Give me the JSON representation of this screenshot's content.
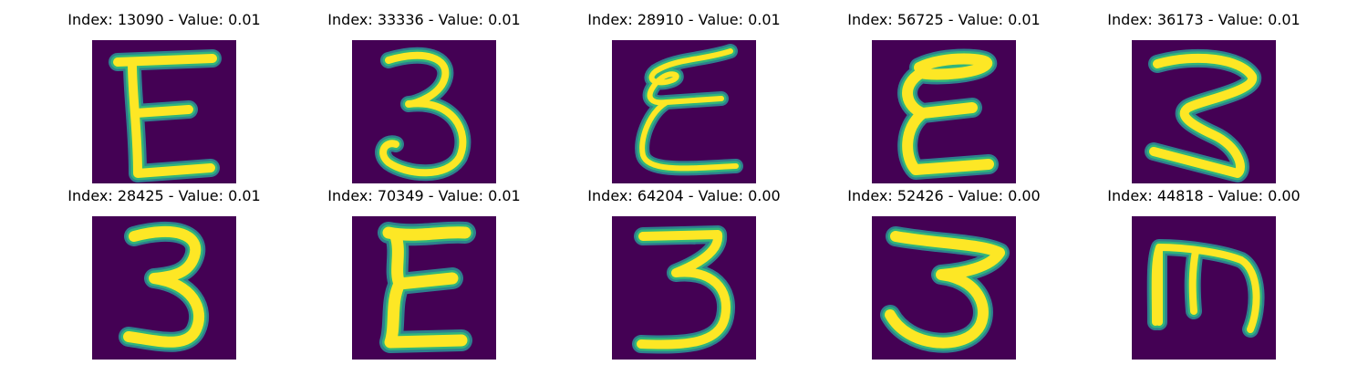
{
  "colors": {
    "background": "#440154",
    "edge_dark": "#2e7f8e",
    "edge_mid": "#31b57b",
    "stroke": "#fde725"
  },
  "items": [
    {
      "label": "Index: 13090 - Value: 0.01",
      "glyph": "E-upright"
    },
    {
      "label": "Index: 33336 - Value: 0.01",
      "glyph": "3"
    },
    {
      "label": "Index: 28910 - Value: 0.01",
      "glyph": "cursive-E"
    },
    {
      "label": "Index: 56725 - Value: 0.01",
      "glyph": "E-round"
    },
    {
      "label": "Index: 36173 - Value: 0.01",
      "glyph": "Z-curve"
    },
    {
      "label": "Index: 28425 - Value: 0.01",
      "glyph": "3"
    },
    {
      "label": "Index: 70349 - Value: 0.01",
      "glyph": "E-wavy"
    },
    {
      "label": "Index: 64204 - Value: 0.00",
      "glyph": "3-flat"
    },
    {
      "label": "Index: 52426 - Value: 0.00",
      "glyph": "3-wide"
    },
    {
      "label": "Index: 44818 - Value: 0.00",
      "glyph": "m-rotated"
    }
  ]
}
